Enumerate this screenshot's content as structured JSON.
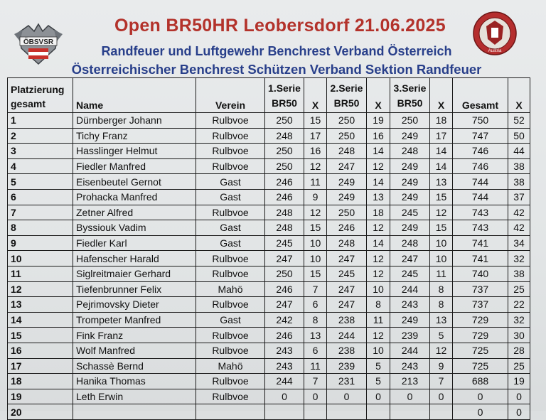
{
  "header": {
    "title": "Open BR50HR Leobersdorf 21.06.2025",
    "subtitle1": "Randfeuer und Luftgewehr Benchrest Verband Österreich",
    "subtitle2": "Österreichischer Benchrest Schützen Verband Sektion Randfeuer",
    "logo_left_text": "ÖBSVSR",
    "logo_right_text": "Austria"
  },
  "table": {
    "headers": {
      "rank_line1": "Platzierung",
      "rank_line2": "gesamt",
      "name": "Name",
      "club": "Verein",
      "serie1_line1": "1.Serie",
      "serie1_line2": "BR50",
      "x1": "X",
      "serie2_line1": "2.Serie",
      "serie2_line2": "BR50",
      "x2": "X",
      "serie3_line1": "3.Serie",
      "serie3_line2": "BR50",
      "x3": "X",
      "total": "Gesamt",
      "xt": "X"
    },
    "rows": [
      {
        "rank": "1",
        "name": "Dürnberger Johann",
        "club": "Rulbvoe",
        "s1": "250",
        "x1": "15",
        "s2": "250",
        "x2": "19",
        "s3": "250",
        "x3": "18",
        "total": "750",
        "xt": "52"
      },
      {
        "rank": "2",
        "name": "Tichy Franz",
        "club": "Rulbvoe",
        "s1": "248",
        "x1": "17",
        "s2": "250",
        "x2": "16",
        "s3": "249",
        "x3": "17",
        "total": "747",
        "xt": "50"
      },
      {
        "rank": "3",
        "name": "Hasslinger Helmut",
        "club": "Rulbvoe",
        "s1": "250",
        "x1": "16",
        "s2": "248",
        "x2": "14",
        "s3": "248",
        "x3": "14",
        "total": "746",
        "xt": "44"
      },
      {
        "rank": "4",
        "name": "Fiedler Manfred",
        "club": "Rulbvoe",
        "s1": "250",
        "x1": "12",
        "s2": "247",
        "x2": "12",
        "s3": "249",
        "x3": "14",
        "total": "746",
        "xt": "38"
      },
      {
        "rank": "5",
        "name": "Eisenbeutel Gernot",
        "club": "Gast",
        "s1": "246",
        "x1": "11",
        "s2": "249",
        "x2": "14",
        "s3": "249",
        "x3": "13",
        "total": "744",
        "xt": "38"
      },
      {
        "rank": "6",
        "name": "Prohacka Manfred",
        "club": "Gast",
        "s1": "246",
        "x1": "9",
        "s2": "249",
        "x2": "13",
        "s3": "249",
        "x3": "15",
        "total": "744",
        "xt": "37"
      },
      {
        "rank": "7",
        "name": "Zetner Alfred",
        "club": "Rulbvoe",
        "s1": "248",
        "x1": "12",
        "s2": "250",
        "x2": "18",
        "s3": "245",
        "x3": "12",
        "total": "743",
        "xt": "42"
      },
      {
        "rank": "8",
        "name": "Byssiouk Vadim",
        "club": "Gast",
        "s1": "248",
        "x1": "15",
        "s2": "246",
        "x2": "12",
        "s3": "249",
        "x3": "15",
        "total": "743",
        "xt": "42"
      },
      {
        "rank": "9",
        "name": "Fiedler Karl",
        "club": "Gast",
        "s1": "245",
        "x1": "10",
        "s2": "248",
        "x2": "14",
        "s3": "248",
        "x3": "10",
        "total": "741",
        "xt": "34"
      },
      {
        "rank": "10",
        "name": "Hafenscher Harald",
        "club": "Rulbvoe",
        "s1": "247",
        "x1": "10",
        "s2": "247",
        "x2": "12",
        "s3": "247",
        "x3": "10",
        "total": "741",
        "xt": "32"
      },
      {
        "rank": "11",
        "name": "Siglreitmaier Gerhard",
        "club": "Rulbvoe",
        "s1": "250",
        "x1": "15",
        "s2": "245",
        "x2": "12",
        "s3": "245",
        "x3": "11",
        "total": "740",
        "xt": "38"
      },
      {
        "rank": "12",
        "name": "Tiefenbrunner Felix",
        "club": "Mahö",
        "s1": "246",
        "x1": "7",
        "s2": "247",
        "x2": "10",
        "s3": "244",
        "x3": "8",
        "total": "737",
        "xt": "25"
      },
      {
        "rank": "13",
        "name": "Pejrimovsky Dieter",
        "club": "Rulbvoe",
        "s1": "247",
        "x1": "6",
        "s2": "247",
        "x2": "8",
        "s3": "243",
        "x3": "8",
        "total": "737",
        "xt": "22"
      },
      {
        "rank": "14",
        "name": "Trompeter Manfred",
        "club": "Gast",
        "s1": "242",
        "x1": "8",
        "s2": "238",
        "x2": "11",
        "s3": "249",
        "x3": "13",
        "total": "729",
        "xt": "32"
      },
      {
        "rank": "15",
        "name": "Fink Franz",
        "club": "Rulbvoe",
        "s1": "246",
        "x1": "13",
        "s2": "244",
        "x2": "12",
        "s3": "239",
        "x3": "5",
        "total": "729",
        "xt": "30"
      },
      {
        "rank": "16",
        "name": "Wolf Manfred",
        "club": "Rulbvoe",
        "s1": "243",
        "x1": "6",
        "s2": "238",
        "x2": "10",
        "s3": "244",
        "x3": "12",
        "total": "725",
        "xt": "28"
      },
      {
        "rank": "17",
        "name": "Schassè Bernd",
        "club": "Mahö",
        "s1": "243",
        "x1": "11",
        "s2": "239",
        "x2": "5",
        "s3": "243",
        "x3": "9",
        "total": "725",
        "xt": "25"
      },
      {
        "rank": "18",
        "name": "Hanika Thomas",
        "club": "Rulbvoe",
        "s1": "244",
        "x1": "7",
        "s2": "231",
        "x2": "5",
        "s3": "213",
        "x3": "7",
        "total": "688",
        "xt": "19"
      },
      {
        "rank": "19",
        "name": "Leth Erwin",
        "club": "Rulbvoe",
        "s1": "0",
        "x1": "0",
        "s2": "0",
        "x2": "0",
        "s3": "0",
        "x3": "0",
        "total": "0",
        "xt": "0"
      },
      {
        "rank": "20",
        "name": "",
        "club": "",
        "s1": "",
        "x1": "",
        "s2": "",
        "x2": "",
        "s3": "",
        "x3": "",
        "total": "0",
        "xt": "0"
      }
    ]
  },
  "colors": {
    "title": "#b3322b",
    "subtitle": "#283f8a",
    "grid": "#1a1a1a"
  }
}
